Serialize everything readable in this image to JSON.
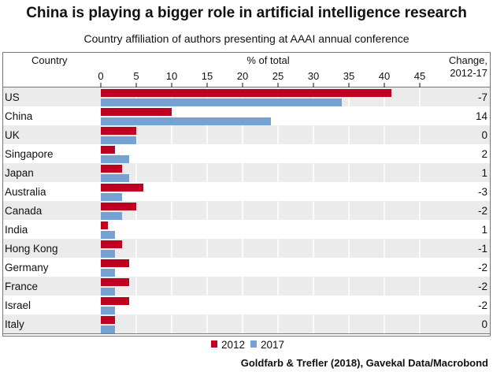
{
  "chart_data": {
    "type": "bar",
    "orientation": "horizontal",
    "title": "China is playing a bigger role in artificial intelligence research",
    "subtitle": "Country affiliation of authors presenting at AAAI annual conference",
    "category_header": "Country",
    "xlabel": "% of total",
    "change_header": [
      "Change,",
      "2012-17"
    ],
    "xlim": [
      0,
      45
    ],
    "xticks": [
      0,
      5,
      10,
      15,
      20,
      25,
      30,
      35,
      40,
      45
    ],
    "grid": true,
    "legend_position": "bottom",
    "categories": [
      "US",
      "China",
      "UK",
      "Singapore",
      "Japan",
      "Australia",
      "Canada",
      "India",
      "Hong Kong",
      "Germany",
      "France",
      "Israel",
      "Italy"
    ],
    "series": [
      {
        "name": "2012",
        "color": "#c00020",
        "values": [
          41,
          10,
          5,
          2,
          3,
          6,
          5,
          1,
          3,
          4,
          4,
          4,
          2
        ]
      },
      {
        "name": "2017",
        "color": "#74a2d2",
        "values": [
          34,
          24,
          5,
          4,
          4,
          3,
          3,
          2,
          2,
          2,
          2,
          2,
          2
        ]
      }
    ],
    "change": [
      "-7",
      "14",
      "0",
      "2",
      "1",
      "-3",
      "-2",
      "1",
      "-1",
      "-2",
      "-2",
      "-2",
      "0"
    ],
    "source": "Goldfarb & Trefler (2018), Gavekal Data/Macrobond"
  }
}
